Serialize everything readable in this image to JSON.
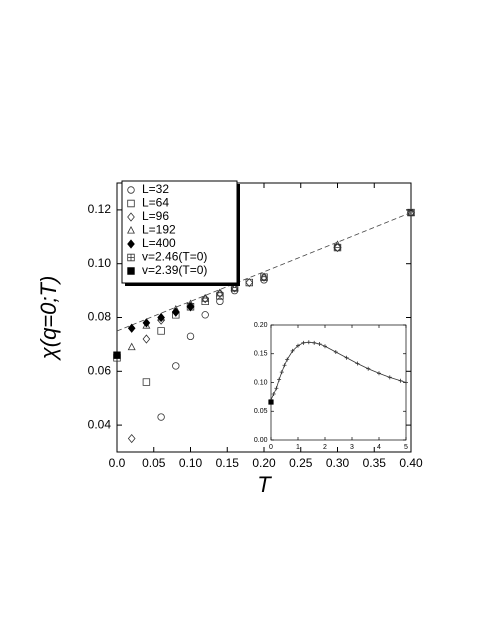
{
  "chart_data": [
    {
      "type": "scatter",
      "xlabel": "T",
      "ylabel": "χ(q=0;T)",
      "xlim": [
        0,
        0.4
      ],
      "ylim": [
        0.03,
        0.13
      ],
      "xticks": [
        {
          "value": 0,
          "label": "0.0"
        },
        0.05,
        {
          "value": 0.1,
          "label": "0.10"
        },
        0.15,
        {
          "value": 0.2,
          "label": "0.20"
        },
        0.25,
        {
          "value": 0.3,
          "label": "0.30"
        },
        0.35,
        {
          "value": 0.4,
          "label": "0.40"
        }
      ],
      "yticks": [
        0.04,
        0.06,
        0.08,
        {
          "value": 0.1,
          "label": "0.10"
        },
        0.12
      ],
      "color": "#333333",
      "fit_line": {
        "x": [
          0,
          0.4
        ],
        "values": [
          0.075,
          0.119
        ]
      },
      "series": [
        {
          "name": "L=32",
          "marker": "circle",
          "x": [
            0.06,
            0.08,
            0.1,
            0.12,
            0.14,
            0.16,
            0.2,
            0.3,
            0.4
          ],
          "values": [
            0.043,
            0.062,
            0.073,
            0.081,
            0.086,
            0.09,
            0.094,
            0.106,
            0.119
          ]
        },
        {
          "name": "L=64",
          "marker": "square",
          "x": [
            0.04,
            0.06,
            0.08,
            0.1,
            0.12,
            0.14,
            0.16,
            0.18,
            0.2,
            0.3,
            0.4
          ],
          "values": [
            0.056,
            0.075,
            0.081,
            0.084,
            0.086,
            0.088,
            0.091,
            0.093,
            0.095,
            0.106,
            0.119
          ]
        },
        {
          "name": "L=96",
          "marker": "diamond",
          "x": [
            0.02,
            0.04,
            0.06,
            0.08,
            0.1,
            0.12,
            0.14,
            0.16,
            0.18,
            0.2,
            0.3,
            0.4
          ],
          "values": [
            0.035,
            0.072,
            0.079,
            0.082,
            0.084,
            0.087,
            0.089,
            0.091,
            0.093,
            0.095,
            0.106,
            0.119
          ]
        },
        {
          "name": "L=192",
          "marker": "triangle",
          "x": [
            0.02,
            0.04,
            0.06,
            0.08,
            0.1,
            0.12,
            0.14,
            0.16,
            0.2,
            0.3,
            0.4
          ],
          "values": [
            0.069,
            0.077,
            0.08,
            0.083,
            0.085,
            0.087,
            0.089,
            0.091,
            0.095,
            0.107,
            0.119
          ]
        },
        {
          "name": "L=400",
          "marker": "filled-diamond",
          "x": [
            0.02,
            0.04,
            0.06,
            0.08,
            0.1
          ],
          "values": [
            0.076,
            0.078,
            0.08,
            0.082,
            0.084
          ]
        },
        {
          "name": "v=2.46(T=0)",
          "marker": "square-plus",
          "x": [
            0
          ],
          "values": [
            0.065
          ]
        },
        {
          "name": "v=2.39(T=0)",
          "marker": "filled-square",
          "x": [
            0
          ],
          "values": [
            0.066
          ]
        }
      ]
    },
    {
      "type": "line",
      "xlim": [
        0,
        5
      ],
      "ylim": [
        0,
        0.2
      ],
      "xticks": [
        0,
        1,
        2,
        3,
        4,
        5
      ],
      "yticks": [
        {
          "value": 0,
          "label": "0.00"
        },
        0.05,
        {
          "value": 0.1,
          "label": "0.10"
        },
        0.15,
        {
          "value": 0.2,
          "label": "0.20"
        }
      ],
      "color": "#333333",
      "series": [
        {
          "marker": "plus",
          "x": [
            0,
            0.1,
            0.2,
            0.3,
            0.4,
            0.5,
            0.6,
            0.8,
            1.0,
            1.2,
            1.4,
            1.6,
            1.8,
            2.0,
            2.4,
            2.8,
            3.2,
            3.6,
            4.0,
            4.4,
            4.8,
            5.0
          ],
          "values": [
            0.07,
            0.08,
            0.09,
            0.105,
            0.118,
            0.13,
            0.14,
            0.155,
            0.164,
            0.169,
            0.17,
            0.169,
            0.167,
            0.163,
            0.153,
            0.143,
            0.133,
            0.124,
            0.116,
            0.109,
            0.103,
            0.1
          ]
        },
        {
          "marker": "filled-square",
          "x": [
            0
          ],
          "values": [
            0.066
          ]
        }
      ]
    }
  ]
}
